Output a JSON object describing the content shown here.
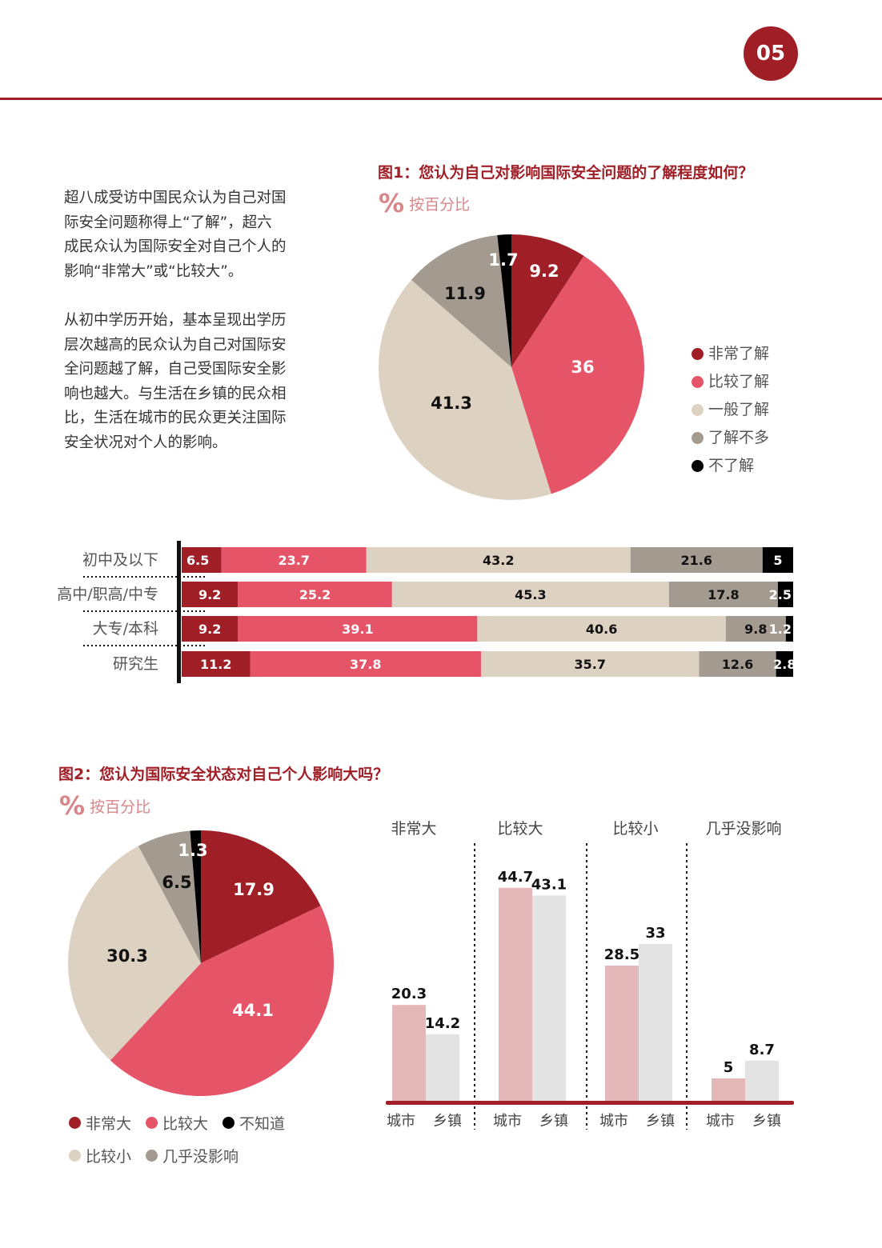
{
  "page_number": "05",
  "body_text": {
    "paragraph1": [
      "超八成受访中国民众认为自己对国",
      "际安全问题称得上“了解”，超六",
      "成民众认为国际安全对自己个人的",
      "影响“非常大”或“比较大”。"
    ],
    "paragraph2": [
      "从初中学历开始，基本呈现出学历",
      "层次越高的民众认为自己对国际安",
      "全问题越了解，自己受国际安全影",
      "响也越大。与生活在乡镇的民众相",
      "比，生活在城市的民众更关注国际",
      "安全状况对个人的影响。"
    ]
  },
  "unit_label": "按百分比",
  "colors": {
    "very": "#a01f26",
    "fairly": "#e65468",
    "average": "#ddd1c2",
    "little": "#a39b90",
    "none": "#000000",
    "city_bar": "#e4b7b8",
    "town_bar": "#e3e3e3",
    "baseline": "#a01f26"
  },
  "chart_data": [
    {
      "type": "pie",
      "title": "图1：您认为自己对影响国际安全问题的了解程度如何？",
      "labels": [
        "非常了解",
        "比较了解",
        "一般了解",
        "了解不多",
        "不了解"
      ],
      "values": [
        9.2,
        36,
        41.3,
        11.9,
        1.7
      ],
      "legend_position": "right"
    },
    {
      "type": "bar",
      "orientation": "horizontal-stacked",
      "categories": [
        "初中及以下",
        "高中/职高/中专",
        "大专/本科",
        "研究生"
      ],
      "series": [
        {
          "name": "非常了解",
          "values": [
            6.5,
            9.2,
            9.2,
            11.2
          ]
        },
        {
          "name": "比较了解",
          "values": [
            23.7,
            25.2,
            39.1,
            37.8
          ]
        },
        {
          "name": "一般了解",
          "values": [
            43.2,
            45.3,
            40.6,
            35.7
          ]
        },
        {
          "name": "了解不多",
          "values": [
            21.6,
            17.8,
            9.8,
            12.6
          ]
        },
        {
          "name": "不了解",
          "values": [
            5,
            2.5,
            1.2,
            2.8
          ]
        }
      ]
    },
    {
      "type": "pie",
      "title": "图2：您认为国际安全状态对自己个人影响大吗？",
      "labels": [
        "非常大",
        "比较大",
        "比较小",
        "几乎没影响",
        "不知道"
      ],
      "values": [
        17.9,
        44.1,
        30.3,
        6.5,
        1.3
      ],
      "legend": [
        [
          "非常大",
          "比较大",
          "不知道"
        ],
        [
          "比较小",
          "几乎没影响"
        ]
      ],
      "legend_position": "bottom"
    },
    {
      "type": "bar",
      "orientation": "vertical-grouped",
      "groups": [
        "非常大",
        "比较大",
        "比较小",
        "几乎没影响"
      ],
      "bar_labels": [
        "城市",
        "乡镇"
      ],
      "series": [
        {
          "name": "城市",
          "values": [
            20.3,
            44.7,
            28.5,
            5
          ]
        },
        {
          "name": "乡镇",
          "values": [
            14.2,
            43.1,
            33,
            8.7
          ]
        }
      ],
      "ylim": [
        0,
        50
      ]
    }
  ]
}
